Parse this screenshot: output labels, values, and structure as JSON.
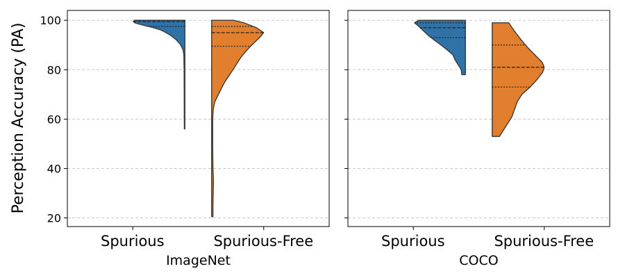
{
  "chart_data": {
    "type": "violin",
    "ylabel": "Perception Accuracy (PA)",
    "yticks": [
      20,
      40,
      60,
      80,
      100
    ],
    "ylim": [
      16.5,
      104
    ],
    "grid": "horizontal-dashed",
    "legend": "none",
    "colors": {
      "Spurious": "#2e72a8",
      "Spurious-Free": "#e17f2e"
    },
    "panels": [
      {
        "xlabel": "ImageNet",
        "categories": [
          "Spurious",
          "Spurious-Free"
        ],
        "violins": [
          {
            "category": "Spurious",
            "color": "#2e72a8",
            "profile": [
              [
                56,
                0.01
              ],
              [
                60,
                0.012
              ],
              [
                70,
                0.013
              ],
              [
                80,
                0.015
              ],
              [
                86,
                0.02
              ],
              [
                88,
                0.035
              ],
              [
                90,
                0.08
              ],
              [
                92,
                0.16
              ],
              [
                94,
                0.28
              ],
              [
                96,
                0.45
              ],
              [
                97,
                0.6
              ],
              [
                98,
                0.8
              ],
              [
                99,
                0.97
              ],
              [
                99.7,
                1.0
              ],
              [
                100,
                0.97
              ]
            ],
            "quartiles": [
              97.5,
              99.5,
              100
            ]
          },
          {
            "category": "Spurious-Free",
            "color": "#e17f2e",
            "profile": [
              [
                20.5,
                0.025
              ],
              [
                25,
                0.025
              ],
              [
                30,
                0.03
              ],
              [
                35,
                0.035
              ],
              [
                40,
                0.025
              ],
              [
                50,
                0.02
              ],
              [
                60,
                0.02
              ],
              [
                64,
                0.03
              ],
              [
                67,
                0.06
              ],
              [
                70,
                0.13
              ],
              [
                75,
                0.25
              ],
              [
                80,
                0.41
              ],
              [
                85,
                0.56
              ],
              [
                88,
                0.68
              ],
              [
                91,
                0.82
              ],
              [
                93,
                0.92
              ],
              [
                95,
                1.0
              ],
              [
                97,
                0.86
              ],
              [
                99,
                0.62
              ],
              [
                100,
                0.42
              ]
            ],
            "quartiles": [
              89.5,
              95,
              97.5
            ]
          }
        ]
      },
      {
        "xlabel": "COCO",
        "categories": [
          "Spurious",
          "Spurious-Free"
        ],
        "violins": [
          {
            "category": "Spurious",
            "color": "#2e72a8",
            "profile": [
              [
                78,
                0.07
              ],
              [
                80,
                0.08
              ],
              [
                82,
                0.14
              ],
              [
                84,
                0.2
              ],
              [
                86,
                0.24
              ],
              [
                88,
                0.35
              ],
              [
                90,
                0.47
              ],
              [
                92,
                0.6
              ],
              [
                94,
                0.72
              ],
              [
                96,
                0.82
              ],
              [
                97,
                0.87
              ],
              [
                98,
                0.92
              ],
              [
                99,
                0.98
              ],
              [
                100,
                0.9
              ]
            ],
            "quartiles": [
              93,
              97,
              99
            ]
          },
          {
            "category": "Spurious-Free",
            "color": "#e17f2e",
            "profile": [
              [
                53,
                0.14
              ],
              [
                55,
                0.2
              ],
              [
                58,
                0.29
              ],
              [
                61,
                0.38
              ],
              [
                64,
                0.43
              ],
              [
                67,
                0.48
              ],
              [
                70,
                0.57
              ],
              [
                73,
                0.73
              ],
              [
                76,
                0.86
              ],
              [
                79,
                0.97
              ],
              [
                81,
                1.0
              ],
              [
                83,
                0.96
              ],
              [
                86,
                0.82
              ],
              [
                89,
                0.68
              ],
              [
                92,
                0.56
              ],
              [
                95,
                0.45
              ],
              [
                97,
                0.38
              ],
              [
                99,
                0.32
              ]
            ],
            "quartiles": [
              73,
              81,
              90
            ]
          }
        ]
      }
    ]
  }
}
